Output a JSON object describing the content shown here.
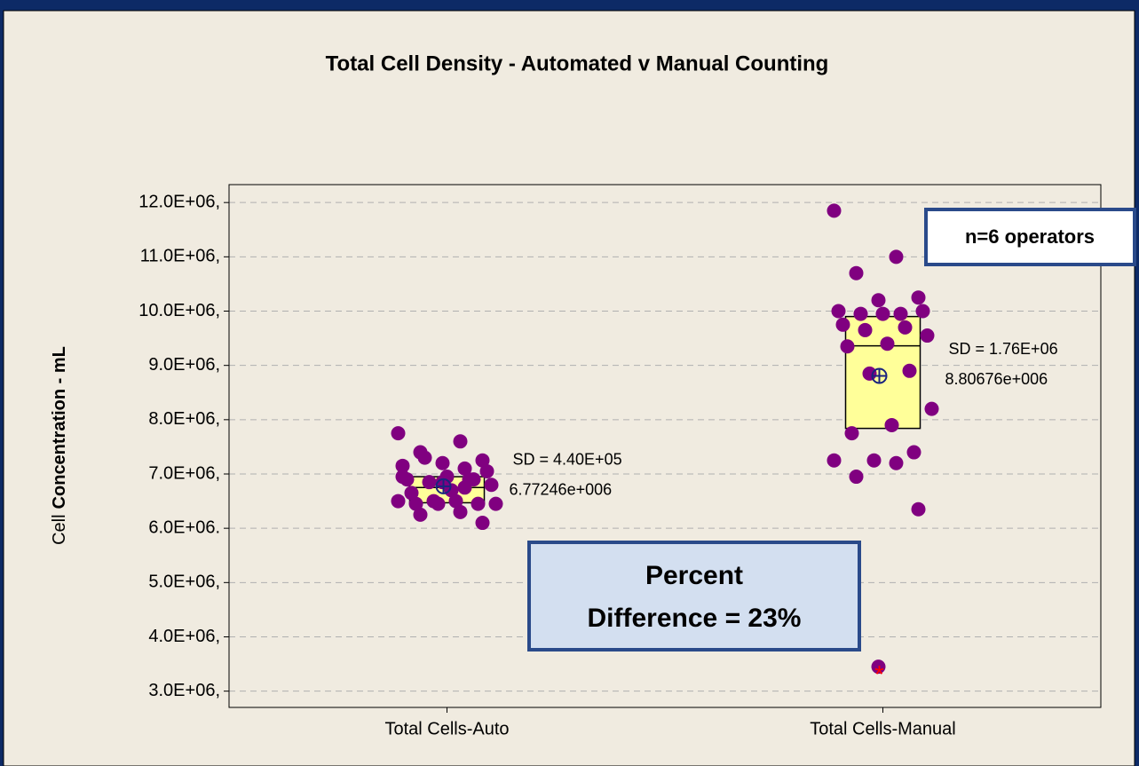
{
  "chart_data": {
    "type": "boxplot",
    "title": "Total Cell Density - Automated v Manual Counting",
    "y_label_light": "Cell",
    "y_label_bold": "Concentration - mL",
    "categories": [
      "Total Cells-Auto",
      "Total Cells-Manual"
    ],
    "boxes": [
      {
        "q1": 6470000,
        "median": 6750000,
        "q3": 6950000,
        "mean": 6772460,
        "mean_label": "6.77246e+006",
        "sd_label": "SD = 4.40E+05",
        "points": [
          7750000,
          7600000,
          7400000,
          7250000,
          7200000,
          7150000,
          7100000,
          7300000,
          7050000,
          6950000,
          6900000,
          6900000,
          6850000,
          6800000,
          6700000,
          6650000,
          6900000,
          6500000,
          6450000,
          6500000,
          6450000,
          6450000,
          6450000,
          6500000,
          6300000,
          6250000,
          6100000,
          6850000,
          6950000,
          6750000
        ],
        "outliers": []
      },
      {
        "q1": 7840000,
        "median": 9360000,
        "q3": 9900000,
        "mean": 8806760,
        "mean_label": "8.80676e+006",
        "sd_label": "SD = 1.76E+06",
        "points": [
          11850000,
          11000000,
          10700000,
          10250000,
          10200000,
          10000000,
          9950000,
          9950000,
          10000000,
          9950000,
          9750000,
          9700000,
          9650000,
          9550000,
          9400000,
          9350000,
          8900000,
          8850000,
          8200000,
          7900000,
          7750000,
          7400000,
          7250000,
          7250000,
          7200000,
          6950000,
          6350000,
          3450000
        ],
        "outliers": [
          3380000
        ]
      }
    ],
    "point_color": "#800080",
    "box_color": "#ffff99",
    "mean_color": "#1a237e",
    "outlier_color": "#ff0000",
    "ylim": [
      2700000,
      12330000
    ],
    "yticks": [
      {
        "value": 12000000,
        "label": "12.0E+06,"
      },
      {
        "value": 11000000,
        "label": "11.0E+06,"
      },
      {
        "value": 10000000,
        "label": "10.0E+06,"
      },
      {
        "value": 9000000,
        "label": "9.0E+06,"
      },
      {
        "value": 8000000,
        "label": "8.0E+06,"
      },
      {
        "value": 7000000,
        "label": "7.0E+06,"
      },
      {
        "value": 6000000,
        "label": "6.0E+06."
      },
      {
        "value": 5000000,
        "label": "5.0E+06,"
      },
      {
        "value": 4000000,
        "label": "4.0E+06,"
      },
      {
        "value": 3000000,
        "label": "3.0E+06,"
      }
    ],
    "grid": true,
    "annotations": {
      "operators": "n=6 operators",
      "percent_line1": "Percent",
      "percent_line2": "Difference = 23%"
    }
  }
}
